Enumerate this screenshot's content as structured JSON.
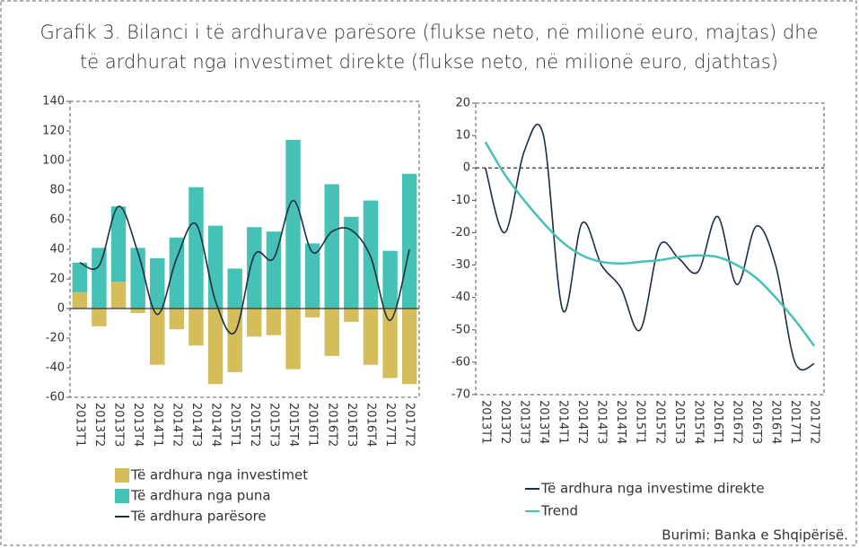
{
  "title_line1": "Grafik 3. Bilanci i të ardhurave parësore (flukse neto, në milionë euro, majtas) dhe",
  "title_line2": "të ardhurat nga investimet direkte (flukse neto, në milionë euro, djathtas)",
  "source": "Burimi: Banka e Shqipërisë.",
  "chart_data": [
    {
      "type": "bar",
      "categories": [
        "2013T1",
        "2013T2",
        "2013T3",
        "2013T4",
        "2014T1",
        "2014T2",
        "2014T3",
        "2014T4",
        "2015T1",
        "2015T2",
        "2015T3",
        "2015T4",
        "2016T1",
        "2016T2",
        "2016T3",
        "2016T4",
        "2017T1",
        "2017T2"
      ],
      "series": [
        {
          "name": "Të ardhura nga investimet",
          "color": "#d4bd5a",
          "type": "bar",
          "values": [
            11,
            -12,
            18,
            -3,
            -38,
            -14,
            -25,
            -51,
            -43,
            -19,
            -18,
            -41,
            -6,
            -32,
            -9,
            -38,
            -47,
            -51
          ]
        },
        {
          "name": "Të ardhura nga puna",
          "color": "#45c1b5",
          "type": "bar",
          "values": [
            20,
            41,
            51,
            41,
            34,
            48,
            82,
            56,
            27,
            55,
            52,
            114,
            44,
            84,
            62,
            73,
            39,
            91
          ]
        },
        {
          "name": "Të ardhura parësore",
          "color": "#1a2e44",
          "type": "line",
          "values": [
            31,
            29,
            69,
            38,
            -4,
            34,
            57,
            5,
            -16,
            36,
            34,
            73,
            38,
            52,
            53,
            35,
            -8,
            40
          ]
        }
      ],
      "ylim": [
        -60,
        140
      ],
      "yticks": [
        -60,
        -40,
        -20,
        0,
        20,
        40,
        60,
        80,
        100,
        120,
        140
      ]
    },
    {
      "type": "line",
      "categories": [
        "2013T1",
        "2013T2",
        "2013T3",
        "2013T4",
        "2014T1",
        "2014T2",
        "2014T3",
        "2014T4",
        "2015T1",
        "2015T2",
        "2015T3",
        "2015T4",
        "2016T1",
        "2016T2",
        "2016T3",
        "2016T4",
        "2017T1",
        "2017T2"
      ],
      "series": [
        {
          "name": "Të ardhura nga investime direkte",
          "color": "#1a2e44",
          "values": [
            0,
            -20,
            5,
            10,
            -44,
            -17,
            -30,
            -37,
            -50,
            -24,
            -28,
            -32,
            -15,
            -36,
            -18,
            -30,
            -60,
            -60.5
          ]
        },
        {
          "name": "Trend",
          "color": "#45c1b5",
          "values": [
            8,
            -2,
            -10,
            -17,
            -23,
            -27,
            -29,
            -29.5,
            -29,
            -28.5,
            -27.5,
            -27,
            -27.5,
            -30,
            -34,
            -40,
            -47,
            -55
          ]
        }
      ],
      "ylim": [
        -70,
        20
      ],
      "yticks": [
        -70,
        -60,
        -50,
        -40,
        -30,
        -20,
        -10,
        0,
        10,
        20
      ]
    }
  ]
}
